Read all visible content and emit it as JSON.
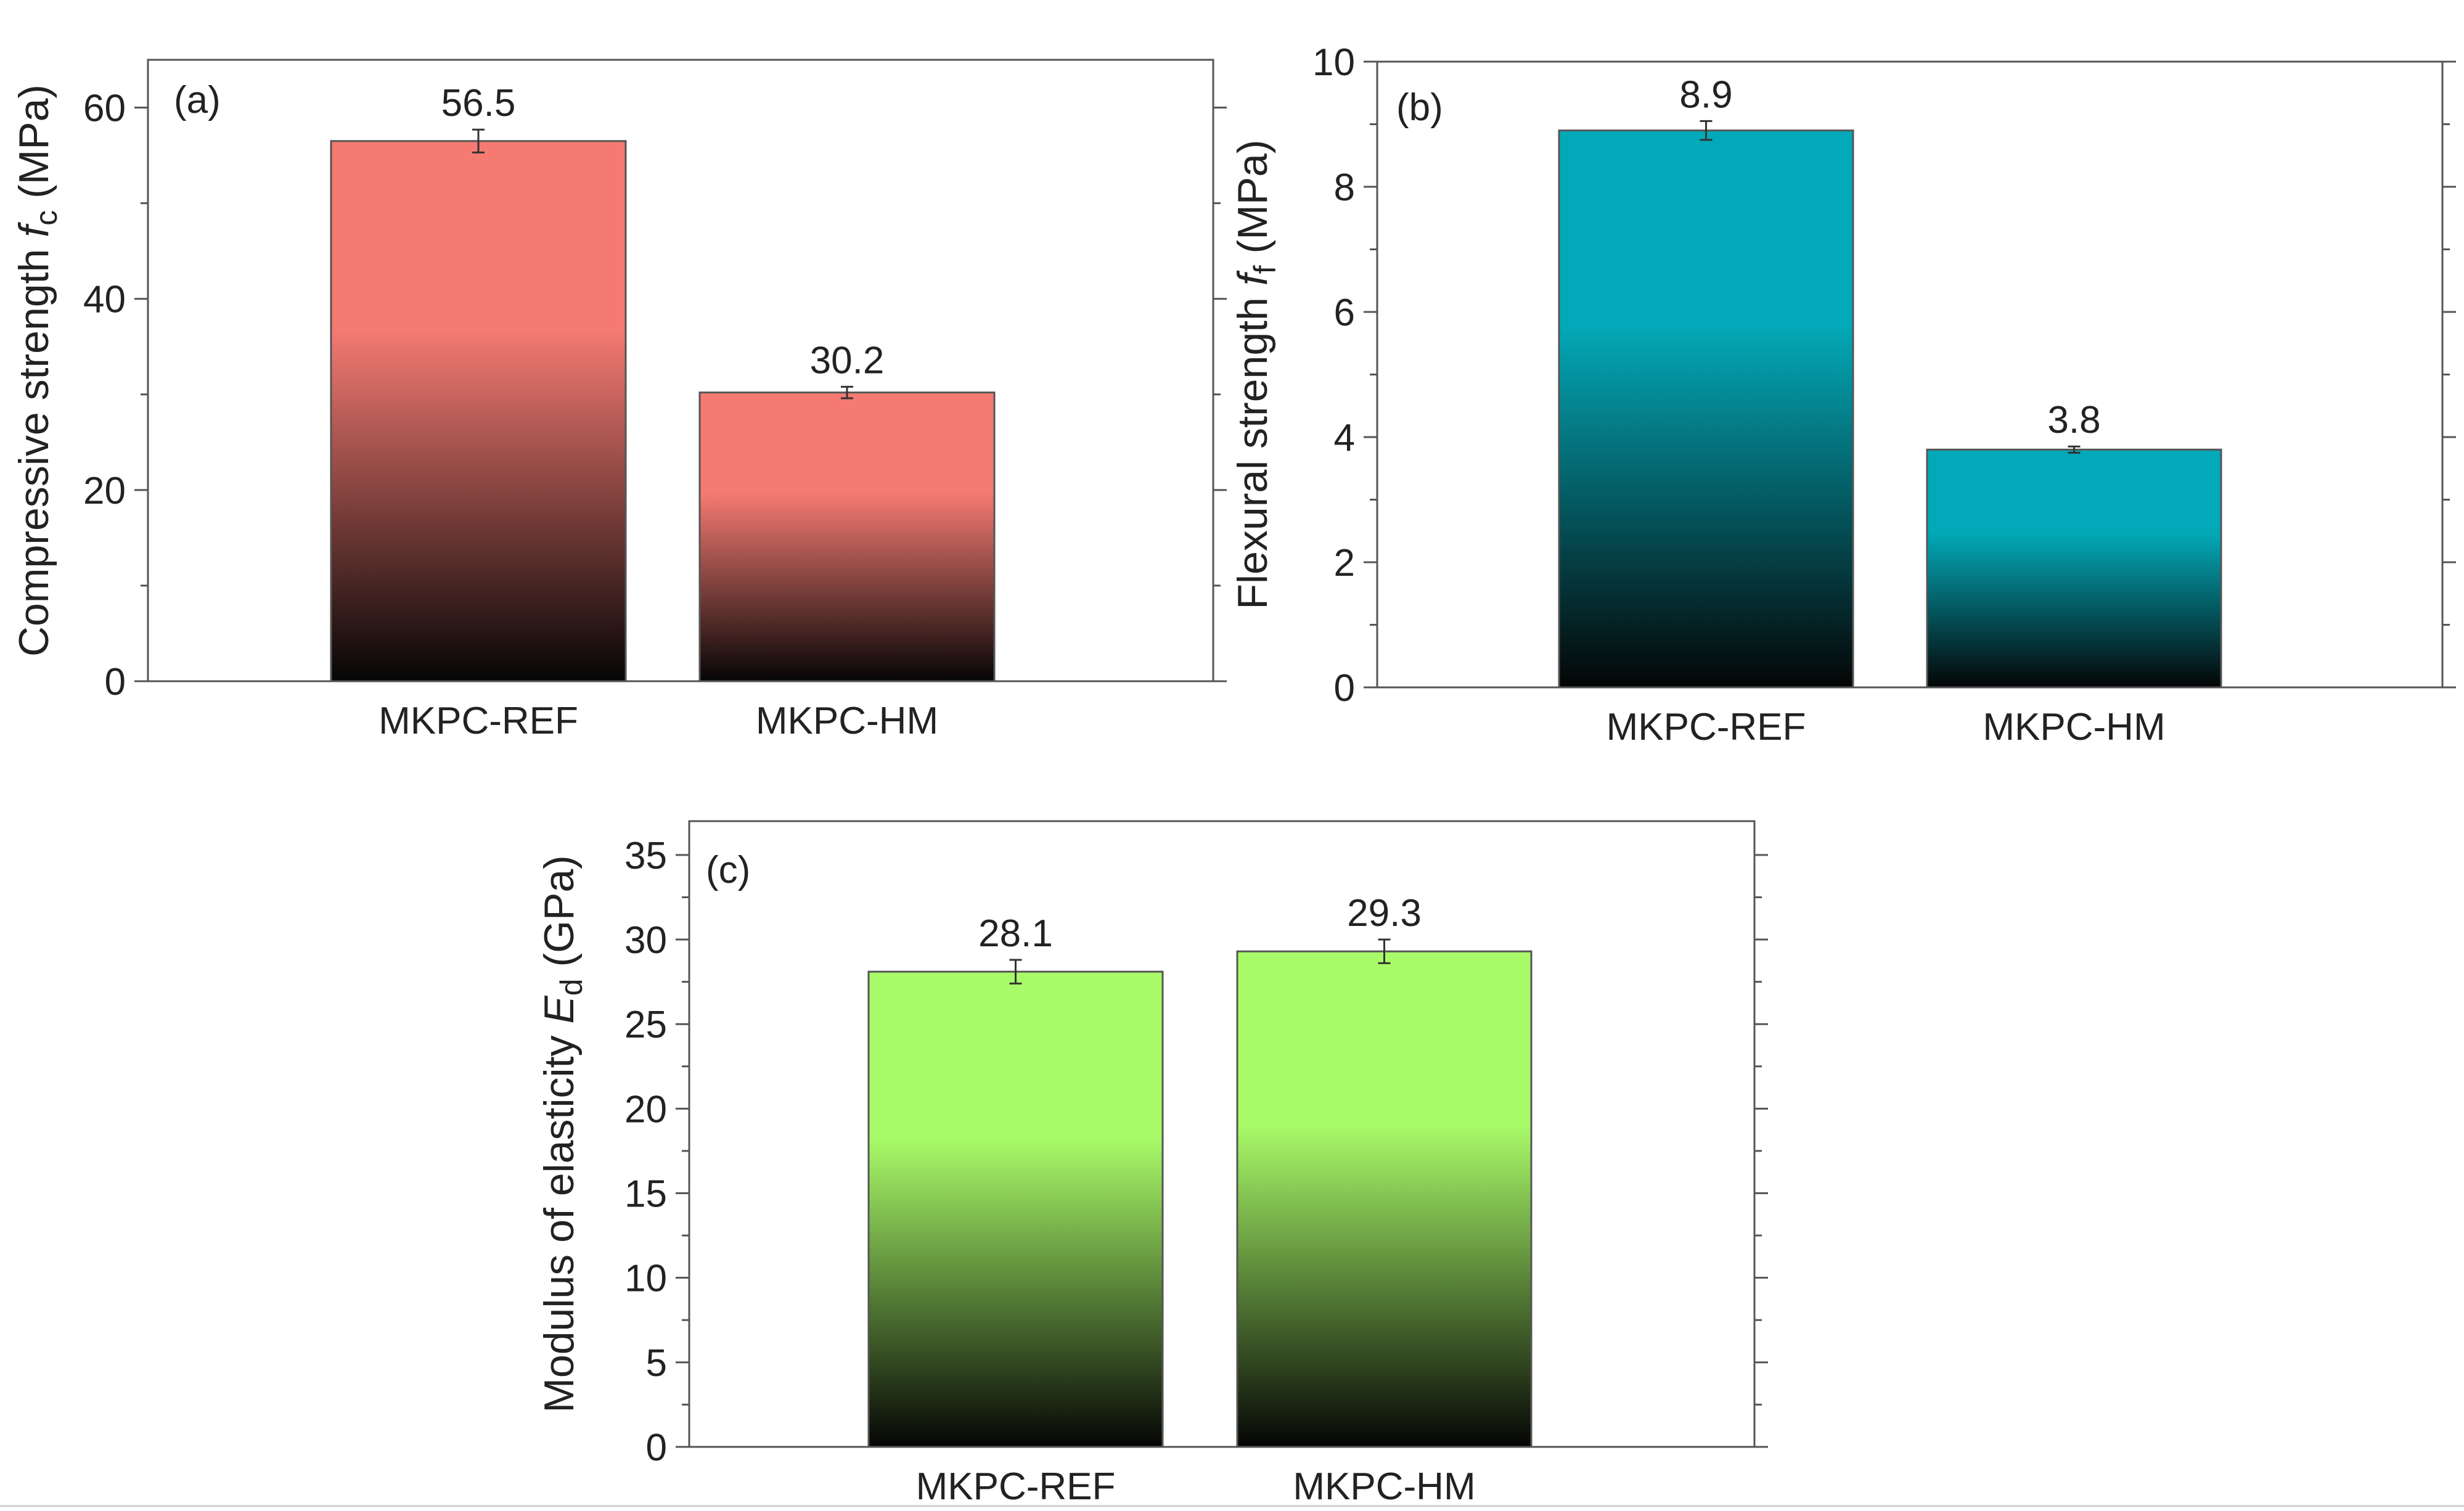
{
  "chart_data": [
    {
      "id": "a",
      "type": "bar",
      "panel_tag": "(a)",
      "ylabel": {
        "prefix": "Compressive strength ",
        "symbol": "f",
        "sub": "c",
        "unit": " (MPa)"
      },
      "categories": [
        "MKPC-REF",
        "MKPC-HM"
      ],
      "values": [
        56.5,
        30.2
      ],
      "value_labels": [
        "56.5",
        "30.2"
      ],
      "error": [
        1.2,
        0.6
      ],
      "ylim": [
        0,
        65
      ],
      "yticks": [
        0,
        20,
        40,
        60
      ],
      "ytick_labels": [
        "0",
        "20",
        "40",
        "60"
      ],
      "color": "#f47a72"
    },
    {
      "id": "b",
      "type": "bar",
      "panel_tag": "(b)",
      "ylabel": {
        "prefix": "Flexural strength ",
        "symbol": "f",
        "sub": "f",
        "unit": " (MPa)"
      },
      "categories": [
        "MKPC-REF",
        "MKPC-HM"
      ],
      "values": [
        8.9,
        3.8
      ],
      "value_labels": [
        "8.9",
        "3.8"
      ],
      "error": [
        0.15,
        0.05
      ],
      "ylim": [
        0,
        10
      ],
      "yticks": [
        0,
        2,
        4,
        6,
        8,
        10
      ],
      "ytick_labels": [
        "0",
        "2",
        "4",
        "6",
        "8",
        "10"
      ],
      "color": "#03a9b8"
    },
    {
      "id": "c",
      "type": "bar",
      "panel_tag": "(c)",
      "ylabel": {
        "prefix": "Modulus of elasticity ",
        "symbol": "E",
        "sub": "d",
        "unit": " (GPa)"
      },
      "categories": [
        "MKPC-REF",
        "MKPC-HM"
      ],
      "values": [
        28.1,
        29.3
      ],
      "value_labels": [
        "28.1",
        "29.3"
      ],
      "error": [
        0.7,
        0.7
      ],
      "ylim": [
        0,
        37
      ],
      "yticks": [
        0,
        5,
        10,
        15,
        20,
        25,
        30,
        35
      ],
      "ytick_labels": [
        "0",
        "5",
        "10",
        "15",
        "20",
        "25",
        "30",
        "35"
      ],
      "color": "#a9fb69"
    }
  ]
}
